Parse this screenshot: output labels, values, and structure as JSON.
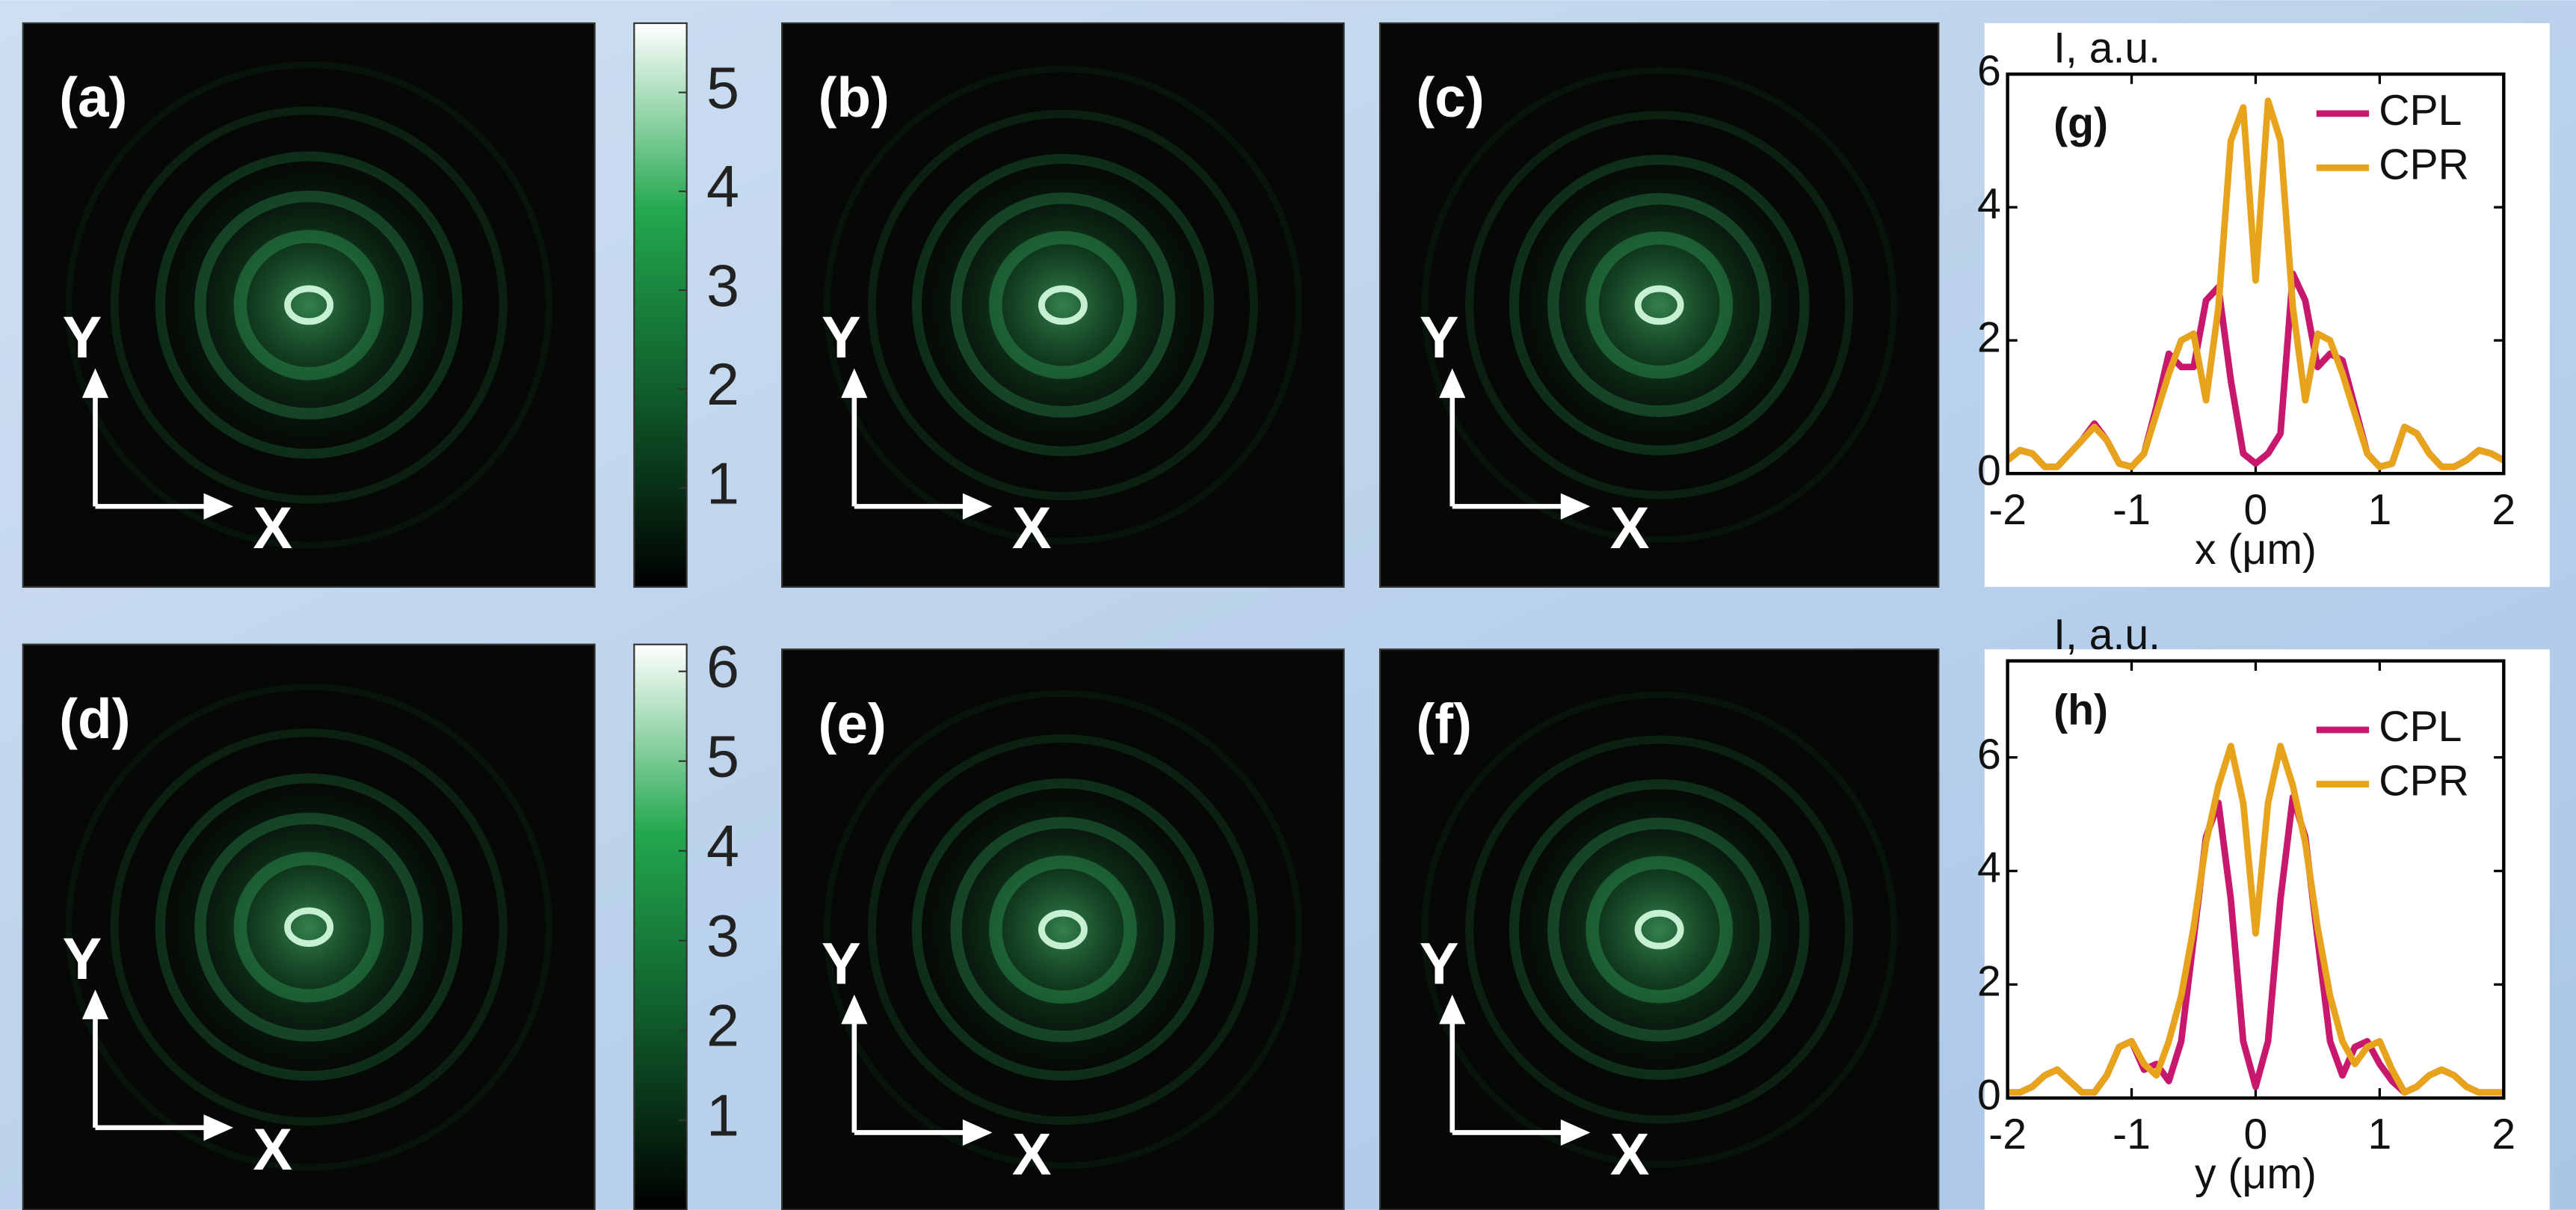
{
  "chart_data": [
    {
      "type": "image",
      "label": "(a)",
      "x_label": "X",
      "y_label": "Y"
    },
    {
      "type": "colorbar",
      "ylim": [
        0,
        5.7
      ],
      "yticks": [
        1,
        2,
        3,
        4,
        5
      ],
      "colors": [
        "#000000",
        "#0f5a2a",
        "#22a84e",
        "#ffffff"
      ]
    },
    {
      "type": "image",
      "label": "(b)",
      "x_label": "X",
      "y_label": "Y"
    },
    {
      "type": "image",
      "label": "(c)",
      "x_label": "X",
      "y_label": "Y"
    },
    {
      "type": "line",
      "label": "(g)",
      "y_label": "I, a.u.",
      "x_label": "x (μm)",
      "legend": "upper right",
      "xlim": [
        -2,
        2
      ],
      "ylim": [
        0,
        6
      ],
      "xticks": [
        -2,
        -1,
        0,
        1,
        2
      ],
      "yticks": [
        0,
        2,
        4,
        6
      ],
      "x": [
        -2.0,
        -1.9,
        -1.8,
        -1.7,
        -1.6,
        -1.5,
        -1.4,
        -1.3,
        -1.2,
        -1.1,
        -1.0,
        -0.9,
        -0.8,
        -0.7,
        -0.6,
        -0.5,
        -0.4,
        -0.3,
        -0.2,
        -0.1,
        0,
        0.1,
        0.2,
        0.3,
        0.4,
        0.5,
        0.6,
        0.7,
        0.8,
        0.9,
        1.0,
        1.1,
        1.2,
        1.3,
        1.4,
        1.5,
        1.6,
        1.7,
        1.8,
        1.9,
        2.0
      ],
      "series": [
        {
          "name": "CPL",
          "color": "#c8186e",
          "values": [
            0.2,
            0.35,
            0.3,
            0.1,
            0.1,
            0.3,
            0.5,
            0.75,
            0.5,
            0.15,
            0.1,
            0.3,
            1.0,
            1.8,
            1.6,
            1.6,
            2.6,
            2.8,
            1.4,
            0.3,
            0.15,
            0.3,
            0.6,
            3.0,
            2.6,
            1.6,
            1.8,
            1.7,
            1.0,
            0.3,
            0.1,
            0.15,
            0.7,
            0.6,
            0.3,
            0.1,
            0.1,
            0.2,
            0.35,
            0.3,
            0.2
          ]
        },
        {
          "name": "CPR",
          "color": "#e8a31c",
          "values": [
            0.2,
            0.35,
            0.3,
            0.1,
            0.1,
            0.3,
            0.5,
            0.7,
            0.5,
            0.15,
            0.1,
            0.3,
            0.9,
            1.5,
            2.0,
            2.1,
            1.1,
            2.5,
            5.0,
            5.5,
            2.9,
            5.6,
            5.0,
            2.5,
            1.1,
            2.1,
            2.0,
            1.5,
            0.9,
            0.3,
            0.1,
            0.15,
            0.7,
            0.6,
            0.3,
            0.1,
            0.1,
            0.2,
            0.35,
            0.3,
            0.2
          ]
        }
      ]
    },
    {
      "type": "image",
      "label": "(d)",
      "x_label": "X",
      "y_label": "Y"
    },
    {
      "type": "colorbar",
      "ylim": [
        0,
        6.3
      ],
      "yticks": [
        1,
        2,
        3,
        4,
        5,
        6
      ],
      "colors": [
        "#000000",
        "#0f5a2a",
        "#22a84e",
        "#ffffff"
      ]
    },
    {
      "type": "image",
      "label": "(e)",
      "x_label": "X",
      "y_label": "Y"
    },
    {
      "type": "image",
      "label": "(f)",
      "x_label": "X",
      "y_label": "Y"
    },
    {
      "type": "line",
      "label": "(h)",
      "y_label": "I, a.u.",
      "x_label": "y (μm)",
      "legend": "upper right",
      "xlim": [
        -2,
        2
      ],
      "ylim": [
        0,
        7.7
      ],
      "xticks": [
        -2,
        -1,
        0,
        1,
        2
      ],
      "yticks": [
        0,
        2,
        4,
        6
      ],
      "x": [
        -2.0,
        -1.9,
        -1.8,
        -1.7,
        -1.6,
        -1.5,
        -1.4,
        -1.3,
        -1.2,
        -1.1,
        -1.0,
        -0.9,
        -0.8,
        -0.7,
        -0.6,
        -0.5,
        -0.4,
        -0.3,
        -0.2,
        -0.1,
        0,
        0.1,
        0.2,
        0.3,
        0.4,
        0.5,
        0.6,
        0.7,
        0.8,
        0.9,
        1.0,
        1.1,
        1.2,
        1.3,
        1.4,
        1.5,
        1.6,
        1.7,
        1.8,
        1.9,
        2.0
      ],
      "series": [
        {
          "name": "CPL",
          "color": "#c8186e",
          "values": [
            0.1,
            0.1,
            0.2,
            0.4,
            0.5,
            0.3,
            0.1,
            0.1,
            0.4,
            0.9,
            1.0,
            0.5,
            0.6,
            0.3,
            1.0,
            2.8,
            4.6,
            5.2,
            3.5,
            1.0,
            0.2,
            1.0,
            3.5,
            5.3,
            4.6,
            2.8,
            1.0,
            0.4,
            0.9,
            1.0,
            0.6,
            0.3,
            0.1,
            0.2,
            0.4,
            0.5,
            0.4,
            0.2,
            0.1,
            0.1,
            0.1
          ]
        },
        {
          "name": "CPR",
          "color": "#e8a31c",
          "values": [
            0.1,
            0.1,
            0.2,
            0.4,
            0.5,
            0.3,
            0.1,
            0.1,
            0.4,
            0.9,
            1.0,
            0.6,
            0.4,
            1.0,
            1.8,
            3.0,
            4.5,
            5.5,
            6.2,
            5.2,
            2.9,
            5.2,
            6.2,
            5.5,
            4.5,
            3.0,
            1.8,
            1.0,
            0.6,
            0.9,
            1.0,
            0.5,
            0.1,
            0.2,
            0.4,
            0.5,
            0.4,
            0.2,
            0.1,
            0.1,
            0.1
          ]
        }
      ]
    }
  ]
}
